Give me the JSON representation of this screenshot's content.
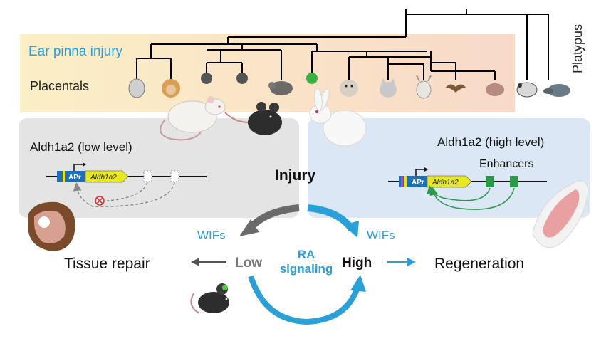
{
  "tree": {
    "ear_pinna_label": "Ear pinna injury",
    "placentals_label": "Placentals",
    "platypus_label": "Platypus"
  },
  "left_panel": {
    "gene_label": "Aldh1a2 (low level)",
    "promoter_label": "APr",
    "gene_box_label": "Aldh1a2"
  },
  "right_panel": {
    "gene_label": "Aldh1a2 (high level)",
    "promoter_label": "APr",
    "gene_box_label": "Aldh1a2",
    "enhancers_label": "Enhancers"
  },
  "center": {
    "injury_label": "Injury",
    "wifs_left": "WIFs",
    "wifs_right": "WIFs",
    "low_label": "Low",
    "high_label": "High",
    "ra_line1": "RA",
    "ra_line2": "signaling"
  },
  "outcomes": {
    "tissue_repair": "Tissue repair",
    "regeneration": "Regeneration"
  },
  "colors": {
    "accent_blue": "#2a9fd8",
    "dark_gray": "#555555",
    "enhancer_green": "#2a9a4a",
    "gene_yellow": "#e8e822",
    "promoter_blue": "#1c6fb8",
    "blocked_red": "#e03030"
  }
}
